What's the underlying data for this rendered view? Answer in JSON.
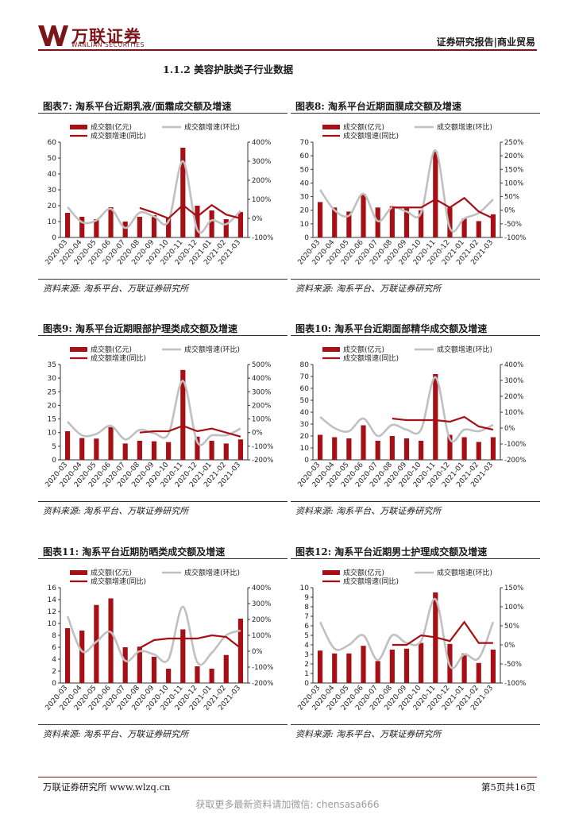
{
  "header": {
    "logo_cn": "万联证券",
    "logo_en": "WANLIAN SECURITIES",
    "report_type": "证券研究报告|商业贸易"
  },
  "section_title": "1.1.2 美容护肤类子行业数据",
  "colors": {
    "brand": "#7b1517",
    "bar": "#a50f15",
    "yoy": "#a50f15",
    "mom": "#c0c0c0"
  },
  "legend": {
    "bar": "成交额(亿元)",
    "mom": "成交额增速(环比)",
    "yoy": "成交额增速(同比)"
  },
  "panels": [
    {
      "title": "图表7: 淘系平台近期乳液/面霜成交额及增速",
      "source": "资料来源: 淘系平台、万联证券研究所",
      "chart_data": {
        "type": "bar",
        "categories": [
          "2020-03",
          "2020-04",
          "2020-05",
          "2020-06",
          "2020-07",
          "2020-08",
          "2020-09",
          "2020-10",
          "2020-11",
          "2020-12",
          "2021-01",
          "2021-02",
          "2021-03"
        ],
        "y_ticks": [
          "0",
          "10",
          "20",
          "30",
          "40",
          "50",
          "60"
        ],
        "y2_ticks": [
          "-100%",
          "0%",
          "100%",
          "200%",
          "300%",
          "400%"
        ],
        "ylim": [
          0,
          60
        ],
        "y2lim": [
          -100,
          400
        ],
        "series": [
          {
            "name": "成交额(亿元)",
            "kind": "bar",
            "values": [
              15.5,
              13,
              11.5,
              19,
              10,
              13,
              14,
              12,
              56.5,
              20,
              17,
              11.5,
              16
            ]
          },
          {
            "name": "成交额增速(环比)",
            "kind": "line",
            "values": [
              60,
              -20,
              -10,
              50,
              -50,
              30,
              10,
              -15,
              300,
              -60,
              -10,
              -30,
              40
            ]
          },
          {
            "name": "成交额增速(同比)",
            "kind": "line",
            "values": [
              null,
              null,
              null,
              null,
              null,
              55,
              30,
              0,
              70,
              10,
              70,
              20,
              0
            ]
          }
        ]
      }
    },
    {
      "title": "图表8: 淘系平台近期面膜成交额及增速",
      "source": "资料来源: 淘系平台、万联证券研究所",
      "chart_data": {
        "type": "bar",
        "categories": [
          "2020-03",
          "2020-04",
          "2020-05",
          "2020-06",
          "2020-07",
          "2020-08",
          "2020-09",
          "2020-10",
          "2020-11",
          "2020-12",
          "2021-01",
          "2021-02",
          "2021-03"
        ],
        "y_ticks": [
          "0",
          "10",
          "20",
          "30",
          "40",
          "50",
          "60",
          "70"
        ],
        "y2_ticks": [
          "-100%",
          "-50%",
          "0%",
          "50%",
          "100%",
          "150%",
          "200%",
          "250%"
        ],
        "ylim": [
          0,
          70
        ],
        "y2lim": [
          -100,
          250
        ],
        "series": [
          {
            "name": "成交额(亿元)",
            "kind": "bar",
            "values": [
              26,
              22,
              19,
              32,
              22,
              23,
              22,
              20,
              63,
              22,
              14,
              12,
              17
            ]
          },
          {
            "name": "成交额增速(环比)",
            "kind": "line",
            "values": [
              75,
              0,
              -20,
              60,
              -40,
              10,
              -5,
              -10,
              220,
              -65,
              -30,
              -10,
              40
            ]
          },
          {
            "name": "成交额增速(同比)",
            "kind": "line",
            "values": [
              null,
              null,
              null,
              null,
              null,
              10,
              10,
              10,
              40,
              10,
              45,
              -5,
              -30
            ]
          }
        ]
      }
    },
    {
      "title": "图表9: 淘系平台近期眼部护理类成交额及增速",
      "source": "资料来源: 淘系平台、万联证券研究所",
      "chart_data": {
        "type": "bar",
        "categories": [
          "2020-03",
          "2020-04",
          "2020-05",
          "2020-06",
          "2020-07",
          "2020-08",
          "2020-09",
          "2020-10",
          "2020-11",
          "2020-12",
          "2021-01",
          "2021-02",
          "2021-03"
        ],
        "y_ticks": [
          "0",
          "5",
          "10",
          "15",
          "20",
          "25",
          "30",
          "35"
        ],
        "y2_ticks": [
          "-200%",
          "-100%",
          "0%",
          "100%",
          "200%",
          "300%",
          "400%",
          "500%"
        ],
        "ylim": [
          0,
          35
        ],
        "y2lim": [
          -200,
          500
        ],
        "series": [
          {
            "name": "成交额(亿元)",
            "kind": "bar",
            "values": [
              10.5,
              8,
              7.8,
              12,
              6,
              7,
              6.8,
              6.5,
              33,
              8.5,
              7,
              6,
              7.5
            ]
          },
          {
            "name": "成交额增速(环比)",
            "kind": "line",
            "values": [
              80,
              -20,
              -10,
              50,
              -50,
              20,
              -5,
              -10,
              380,
              -70,
              -20,
              -20,
              30
            ]
          },
          {
            "name": "成交额增速(同比)",
            "kind": "line",
            "values": [
              null,
              null,
              null,
              null,
              null,
              0,
              10,
              10,
              50,
              10,
              30,
              0,
              -30
            ]
          }
        ]
      }
    },
    {
      "title": "图表10: 淘系平台近期面部精华成交额及增速",
      "source": "资料来源: 淘系平台、万联证券研究所",
      "chart_data": {
        "type": "bar",
        "categories": [
          "2020-03",
          "2020-04",
          "2020-05",
          "2020-06",
          "2020-07",
          "2020-08",
          "2020-09",
          "2020-10",
          "2020-11",
          "2020-12",
          "2021-01",
          "2021-02",
          "2021-03"
        ],
        "y_ticks": [
          "0",
          "10",
          "20",
          "30",
          "40",
          "50",
          "60",
          "70",
          "80"
        ],
        "y2_ticks": [
          "-200%",
          "-100%",
          "0%",
          "100%",
          "200%",
          "300%",
          "400%"
        ],
        "ylim": [
          0,
          80
        ],
        "y2lim": [
          -200,
          400
        ],
        "series": [
          {
            "name": "成交额(亿元)",
            "kind": "bar",
            "values": [
              21,
              19,
              18,
              29,
              16,
              20,
              18,
              16,
              72,
              21,
              19,
              15,
              19
            ]
          },
          {
            "name": "成交额增速(环比)",
            "kind": "line",
            "values": [
              70,
              0,
              -20,
              60,
              -50,
              20,
              -10,
              -10,
              320,
              -70,
              -10,
              -20,
              20
            ]
          },
          {
            "name": "成交额增速(同比)",
            "kind": "line",
            "values": [
              null,
              null,
              null,
              null,
              null,
              60,
              50,
              50,
              50,
              40,
              70,
              10,
              -10
            ]
          }
        ]
      }
    },
    {
      "title": "图表11: 淘系平台近期防晒类成交额及增速",
      "source": "资料来源: 淘系平台、万联证券研究所",
      "chart_data": {
        "type": "bar",
        "categories": [
          "2020-03",
          "2020-04",
          "2020-05",
          "2020-06",
          "2020-07",
          "2020-08",
          "2020-09",
          "2020-10",
          "2020-11",
          "2020-12",
          "2021-01",
          "2021-02",
          "2021-03"
        ],
        "y_ticks": [
          "0",
          "2",
          "4",
          "6",
          "8",
          "10",
          "12",
          "14",
          "16"
        ],
        "y2_ticks": [
          "-200%",
          "-100%",
          "0%",
          "100%",
          "200%",
          "300%",
          "400%"
        ],
        "ylim": [
          0,
          16
        ],
        "y2lim": [
          -200,
          400
        ],
        "series": [
          {
            "name": "成交额(亿元)",
            "kind": "bar",
            "values": [
              9.2,
              8.8,
              13.1,
              14.2,
              6,
              6.1,
              4.4,
              2.4,
              9,
              2.8,
              2.4,
              4.7,
              10.8
            ]
          },
          {
            "name": "成交额增速(环比)",
            "kind": "line",
            "values": [
              220,
              0,
              60,
              120,
              -60,
              0,
              -20,
              -50,
              280,
              -70,
              -10,
              100,
              130
            ]
          },
          {
            "name": "成交额增速(同比)",
            "kind": "line",
            "values": [
              null,
              null,
              null,
              null,
              null,
              20,
              70,
              80,
              80,
              80,
              100,
              90,
              20
            ]
          }
        ]
      }
    },
    {
      "title": "图表12: 淘系平台近期男士护理成交额及增速",
      "source": "资料来源: 淘系平台、万联证券研究所",
      "chart_data": {
        "type": "bar",
        "categories": [
          "2020-03",
          "2020-04",
          "2020-05",
          "2020-06",
          "2020-07",
          "2020-08",
          "2020-09",
          "2020-10",
          "2020-11",
          "2020-12",
          "2021-01",
          "2021-02",
          "2021-03"
        ],
        "y_ticks": [
          "0",
          "1",
          "2",
          "3",
          "4",
          "5",
          "6",
          "7",
          "8",
          "9",
          "10"
        ],
        "y2_ticks": [
          "-100%",
          "-50%",
          "0%",
          "50%",
          "100%",
          "150%"
        ],
        "ylim": [
          0,
          10
        ],
        "y2lim": [
          -100,
          150
        ],
        "series": [
          {
            "name": "成交额(亿元)",
            "kind": "bar",
            "values": [
              3.4,
              3.1,
              3.1,
              3.9,
              2.3,
              3.5,
              3.6,
              4.2,
              9.5,
              4.1,
              3.1,
              2.1,
              3.5
            ]
          },
          {
            "name": "成交额增速(环比)",
            "kind": "line",
            "values": [
              60,
              -10,
              0,
              25,
              -40,
              25,
              5,
              10,
              120,
              -55,
              -25,
              -35,
              60
            ]
          },
          {
            "name": "成交额增速(同比)",
            "kind": "line",
            "values": [
              null,
              null,
              null,
              null,
              null,
              0,
              0,
              25,
              20,
              10,
              60,
              5,
              5
            ]
          }
        ]
      }
    }
  ],
  "footer": {
    "left": "万联证券研究所 www.wlzq.cn",
    "right": "第5页共16页",
    "watermark": "获取更多最新资料请加微信: chensasa666"
  }
}
